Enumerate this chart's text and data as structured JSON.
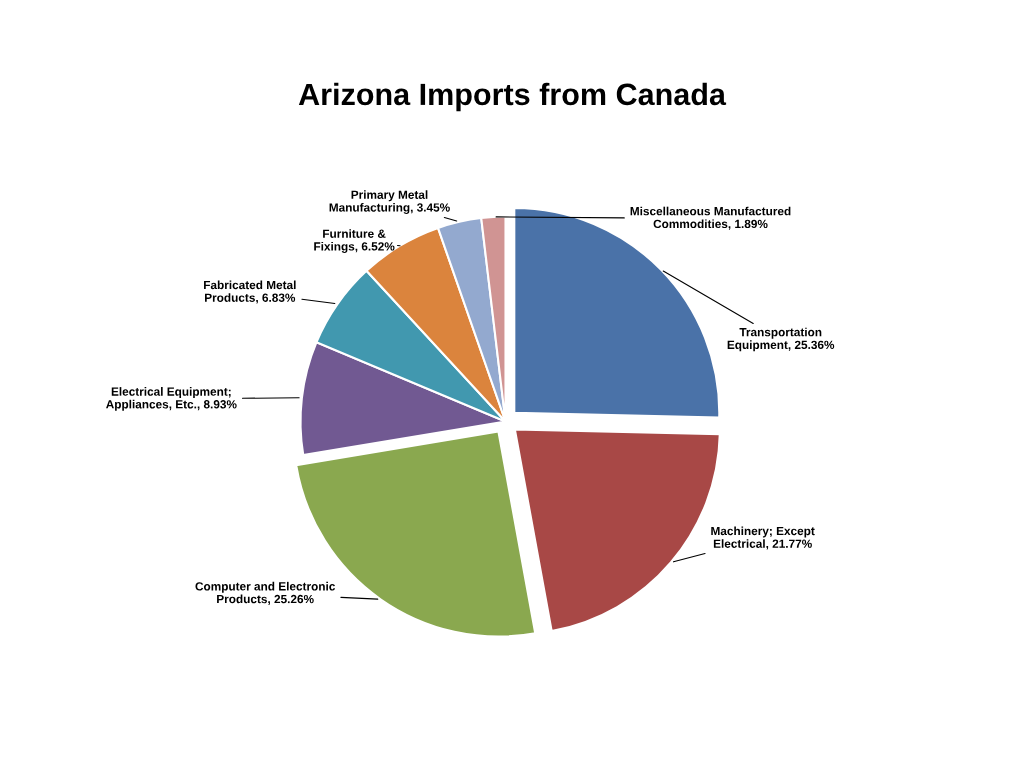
{
  "chart_data": {
    "type": "pie",
    "title": "Arizona Imports from Canada",
    "categories": [
      "Transportation Equipment",
      "Machinery; Except Electrical",
      "Computer and Electronic Products",
      "Electrical Equipment; Appliances, Etc.",
      "Fabricated Metal Products",
      "Furniture & Fixings",
      "Primary Metal Manufacturing",
      "Miscellaneous Manufactured Commodities"
    ],
    "values": [
      25.36,
      21.77,
      25.26,
      8.93,
      6.83,
      6.52,
      3.45,
      1.89
    ],
    "value_labels": [
      "25.36%",
      "21.77%",
      "25.26%",
      "8.93%",
      "6.83%",
      "6.52%",
      "3.45%",
      "1.89%"
    ],
    "colors": [
      "#4a72a8",
      "#a84846",
      "#8aa84f",
      "#715992",
      "#4198af",
      "#db843d",
      "#93a9cf",
      "#d09493"
    ],
    "legend": false
  }
}
